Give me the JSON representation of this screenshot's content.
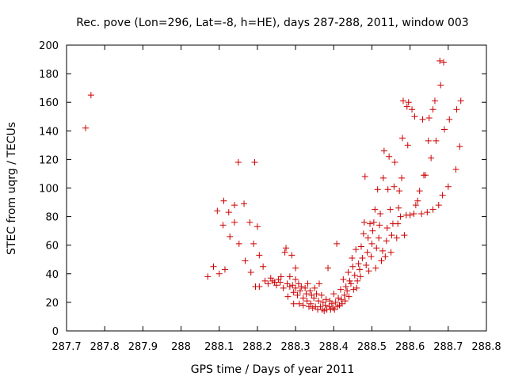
{
  "chart_data": {
    "type": "scatter",
    "title": "Rec. pove (Lon=296, Lat=-8, h=HE), days 287-288, 2011, window 003",
    "xlabel": "GPS time / Days of year 2011",
    "ylabel": "STEC from uqrg / TECUs",
    "xlim": [
      287.7,
      288.8
    ],
    "ylim": [
      0,
      200
    ],
    "x_ticks": [
      287.7,
      287.8,
      287.9,
      288.0,
      288.1,
      288.2,
      288.3,
      288.4,
      288.5,
      288.6,
      288.7,
      288.8
    ],
    "x_tick_labels": [
      "287.7",
      "287.8",
      "287.9",
      "288",
      "288.1",
      "288.2",
      "288.3",
      "288.4",
      "288.5",
      "288.6",
      "288.7",
      "288.8"
    ],
    "y_ticks": [
      0,
      20,
      40,
      60,
      80,
      100,
      120,
      140,
      160,
      180,
      200
    ],
    "y_tick_labels": [
      "0",
      "20",
      "40",
      "60",
      "80",
      "100",
      "120",
      "140",
      "160",
      "180",
      "200"
    ],
    "grid": false,
    "marker": "+",
    "color": "#cc0000",
    "points": [
      [
        287.75,
        142
      ],
      [
        287.764,
        165
      ],
      [
        288.07,
        38
      ],
      [
        288.085,
        45
      ],
      [
        288.095,
        84
      ],
      [
        288.1,
        40
      ],
      [
        288.11,
        74
      ],
      [
        288.112,
        91
      ],
      [
        288.115,
        43
      ],
      [
        288.125,
        83
      ],
      [
        288.128,
        66
      ],
      [
        288.14,
        88
      ],
      [
        288.14,
        76
      ],
      [
        288.15,
        118
      ],
      [
        288.152,
        61
      ],
      [
        288.165,
        89
      ],
      [
        288.168,
        49
      ],
      [
        288.18,
        76
      ],
      [
        288.183,
        41
      ],
      [
        288.19,
        61
      ],
      [
        288.193,
        118
      ],
      [
        288.195,
        31
      ],
      [
        288.2,
        73
      ],
      [
        288.205,
        31
      ],
      [
        288.205,
        53
      ],
      [
        288.215,
        45
      ],
      [
        288.22,
        35
      ],
      [
        288.228,
        33
      ],
      [
        288.235,
        37
      ],
      [
        288.24,
        35
      ],
      [
        288.245,
        34
      ],
      [
        288.25,
        32
      ],
      [
        288.255,
        36
      ],
      [
        288.26,
        34
      ],
      [
        288.262,
        38
      ],
      [
        288.268,
        30
      ],
      [
        288.272,
        55
      ],
      [
        288.275,
        58
      ],
      [
        288.278,
        33
      ],
      [
        288.28,
        24
      ],
      [
        288.285,
        31
      ],
      [
        288.285,
        38
      ],
      [
        288.29,
        53
      ],
      [
        288.292,
        32
      ],
      [
        288.295,
        19
      ],
      [
        288.295,
        27
      ],
      [
        288.3,
        30
      ],
      [
        288.3,
        36
      ],
      [
        288.3,
        44
      ],
      [
        288.305,
        25
      ],
      [
        288.308,
        33
      ],
      [
        288.31,
        19
      ],
      [
        288.312,
        28
      ],
      [
        288.315,
        31
      ],
      [
        288.32,
        23
      ],
      [
        288.32,
        18
      ],
      [
        288.325,
        30
      ],
      [
        288.328,
        26
      ],
      [
        288.33,
        21
      ],
      [
        288.332,
        33
      ],
      [
        288.335,
        17
      ],
      [
        288.338,
        28
      ],
      [
        288.34,
        19
      ],
      [
        288.342,
        25
      ],
      [
        288.345,
        16
      ],
      [
        288.348,
        23
      ],
      [
        288.35,
        30
      ],
      [
        288.352,
        17
      ],
      [
        288.355,
        26
      ],
      [
        288.358,
        15
      ],
      [
        288.36,
        21
      ],
      [
        288.362,
        33
      ],
      [
        288.365,
        17
      ],
      [
        288.368,
        25
      ],
      [
        288.37,
        15
      ],
      [
        288.372,
        20
      ],
      [
        288.375,
        14
      ],
      [
        288.378,
        18
      ],
      [
        288.38,
        22
      ],
      [
        288.382,
        15
      ],
      [
        288.385,
        44
      ],
      [
        288.388,
        17
      ],
      [
        288.39,
        21
      ],
      [
        288.392,
        15
      ],
      [
        288.395,
        19
      ],
      [
        288.398,
        16
      ],
      [
        288.4,
        26
      ],
      [
        288.402,
        15
      ],
      [
        288.405,
        20
      ],
      [
        288.408,
        61
      ],
      [
        288.41,
        17
      ],
      [
        288.412,
        23
      ],
      [
        288.415,
        18
      ],
      [
        288.418,
        29
      ],
      [
        288.42,
        22
      ],
      [
        288.422,
        19
      ],
      [
        288.425,
        36
      ],
      [
        288.428,
        25
      ],
      [
        288.43,
        21
      ],
      [
        288.432,
        31
      ],
      [
        288.435,
        28
      ],
      [
        288.438,
        41
      ],
      [
        288.44,
        24
      ],
      [
        288.442,
        35
      ],
      [
        288.445,
        33
      ],
      [
        288.448,
        51
      ],
      [
        288.45,
        45
      ],
      [
        288.452,
        29
      ],
      [
        288.455,
        39
      ],
      [
        288.458,
        57
      ],
      [
        288.46,
        30
      ],
      [
        288.462,
        35
      ],
      [
        288.465,
        47
      ],
      [
        288.468,
        43
      ],
      [
        288.47,
        38
      ],
      [
        288.472,
        59
      ],
      [
        288.475,
        51
      ],
      [
        288.478,
        68
      ],
      [
        288.48,
        76
      ],
      [
        288.482,
        108
      ],
      [
        288.485,
        46
      ],
      [
        288.488,
        55
      ],
      [
        288.49,
        65
      ],
      [
        288.492,
        42
      ],
      [
        288.495,
        75
      ],
      [
        288.498,
        52
      ],
      [
        288.5,
        61
      ],
      [
        288.502,
        70
      ],
      [
        288.505,
        76
      ],
      [
        288.508,
        85
      ],
      [
        288.51,
        44
      ],
      [
        288.512,
        58
      ],
      [
        288.515,
        99
      ],
      [
        288.518,
        65
      ],
      [
        288.52,
        74
      ],
      [
        288.522,
        82
      ],
      [
        288.525,
        49
      ],
      [
        288.528,
        56
      ],
      [
        288.53,
        107
      ],
      [
        288.532,
        126
      ],
      [
        288.535,
        52
      ],
      [
        288.538,
        63
      ],
      [
        288.54,
        72
      ],
      [
        288.542,
        99
      ],
      [
        288.545,
        122
      ],
      [
        288.548,
        85
      ],
      [
        288.55,
        55
      ],
      [
        288.552,
        67
      ],
      [
        288.555,
        75
      ],
      [
        288.558,
        101
      ],
      [
        288.56,
        118
      ],
      [
        288.565,
        65
      ],
      [
        288.568,
        75
      ],
      [
        288.57,
        86
      ],
      [
        288.572,
        98
      ],
      [
        288.575,
        80
      ],
      [
        288.578,
        107
      ],
      [
        288.58,
        135
      ],
      [
        288.582,
        161
      ],
      [
        288.585,
        67
      ],
      [
        288.59,
        81
      ],
      [
        288.592,
        157
      ],
      [
        288.594,
        130
      ],
      [
        288.596,
        160
      ],
      [
        288.6,
        81
      ],
      [
        288.605,
        155
      ],
      [
        288.61,
        82
      ],
      [
        288.612,
        150
      ],
      [
        288.615,
        88
      ],
      [
        288.62,
        91
      ],
      [
        288.625,
        98
      ],
      [
        288.63,
        82
      ],
      [
        288.633,
        148
      ],
      [
        288.636,
        109
      ],
      [
        288.64,
        109
      ],
      [
        288.645,
        83
      ],
      [
        288.648,
        133
      ],
      [
        288.65,
        149
      ],
      [
        288.655,
        121
      ],
      [
        288.66,
        155
      ],
      [
        288.66,
        85
      ],
      [
        288.665,
        161
      ],
      [
        288.668,
        133
      ],
      [
        288.675,
        88
      ],
      [
        288.678,
        189
      ],
      [
        288.68,
        172
      ],
      [
        288.685,
        95
      ],
      [
        288.688,
        188
      ],
      [
        288.69,
        141
      ],
      [
        288.7,
        101
      ],
      [
        288.703,
        148
      ],
      [
        288.72,
        113
      ],
      [
        288.722,
        155
      ],
      [
        288.73,
        129
      ],
      [
        288.733,
        161
      ]
    ]
  }
}
